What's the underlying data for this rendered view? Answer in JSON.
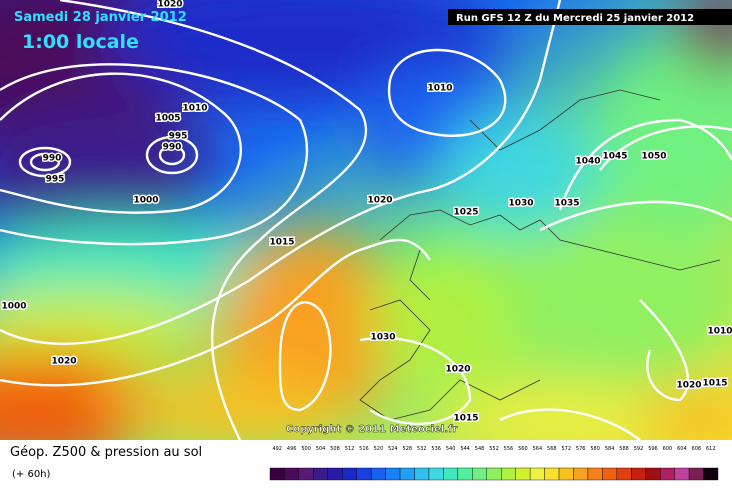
{
  "header": {
    "date": "Samedi 28 janvier 2012",
    "time": "1:00 locale",
    "run": "Run GFS 12 Z du Mercredi 25 janvier 2012"
  },
  "copyright": "Copyright © 2011 Meteociel.fr",
  "footer": {
    "title": "Géop. Z500 & pression au sol",
    "lead": "(+ 60h)"
  },
  "isobar_labels": [
    "1020",
    "1010",
    "1005",
    "995",
    "990",
    "990",
    "995",
    "1000",
    "1010",
    "1020",
    "1015",
    "1025",
    "1030",
    "1035",
    "1040",
    "1045",
    "1050",
    "1030",
    "1020",
    "1015",
    "1010",
    "1020",
    "1015",
    "1000",
    "1020"
  ],
  "scale": {
    "labels": [
      492,
      496,
      500,
      504,
      508,
      512,
      516,
      520,
      524,
      528,
      532,
      536,
      540,
      544,
      548,
      552,
      556,
      560,
      564,
      568,
      572,
      576,
      580,
      584,
      588,
      592,
      596,
      600,
      604,
      608,
      612
    ],
    "colors": [
      "#3a0040",
      "#4b0a5a",
      "#5a1a78",
      "#3a1a8c",
      "#2a1aa8",
      "#1a2ac8",
      "#1a40e0",
      "#1a60f0",
      "#1a80f8",
      "#20a0f8",
      "#30c0f0",
      "#40d8e0",
      "#40e8c0",
      "#50f0a0",
      "#70f080",
      "#90f060",
      "#b0f040",
      "#d0f030",
      "#f0f040",
      "#f8e030",
      "#f8c020",
      "#f8a020",
      "#f88018",
      "#f06010",
      "#e04010",
      "#c82010",
      "#a01010",
      "#b02060",
      "#c040a0",
      "#7a2050",
      "#100010"
    ]
  }
}
